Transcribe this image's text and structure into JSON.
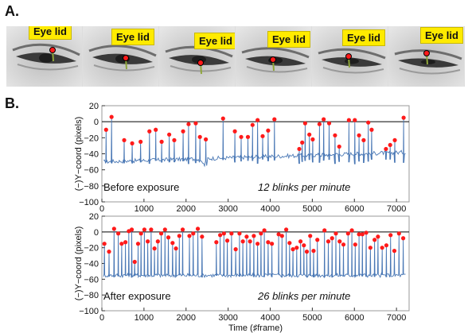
{
  "panel_a": {
    "letter": "A.",
    "frames": [
      {
        "label": "Eye lid"
      },
      {
        "label": "Eye lid"
      },
      {
        "label": "Eye lid"
      },
      {
        "label": "Eye lid"
      },
      {
        "label": "Eye lid"
      },
      {
        "label": "Eye lid"
      }
    ]
  },
  "panel_b": {
    "letter": "B."
  },
  "colors": {
    "trace": "#4a78b5",
    "peak": "#ff1a1a",
    "zero_line": "#000000",
    "label_bg": "#ffeb00"
  },
  "chart_data": [
    {
      "type": "line",
      "ylabel": "(−)Y−coord (pixels)",
      "xlabel": "",
      "xlim": [
        0,
        7300
      ],
      "ylim": [
        -100,
        20
      ],
      "xticks": [
        "0",
        "1000",
        "2000",
        "3000",
        "4000",
        "5000",
        "6000",
        "7000"
      ],
      "yticks": [
        "20",
        "0",
        "−20",
        "−40",
        "−60",
        "−80",
        "−100"
      ],
      "annotation_left": "Before exposure",
      "annotation_right": "12 blinks per minute",
      "baseline": -50,
      "peaks": [
        {
          "x": 100,
          "y": -10
        },
        {
          "x": 230,
          "y": 6
        },
        {
          "x": 530,
          "y": -23
        },
        {
          "x": 720,
          "y": -27
        },
        {
          "x": 920,
          "y": -25
        },
        {
          "x": 1130,
          "y": -12
        },
        {
          "x": 1280,
          "y": -10
        },
        {
          "x": 1420,
          "y": -25
        },
        {
          "x": 1600,
          "y": -16
        },
        {
          "x": 1720,
          "y": -23
        },
        {
          "x": 1930,
          "y": -12
        },
        {
          "x": 2060,
          "y": -3
        },
        {
          "x": 2230,
          "y": -2
        },
        {
          "x": 2330,
          "y": -19
        },
        {
          "x": 2470,
          "y": -22
        },
        {
          "x": 2880,
          "y": 4
        },
        {
          "x": 3160,
          "y": -12
        },
        {
          "x": 3310,
          "y": -19
        },
        {
          "x": 3470,
          "y": -19
        },
        {
          "x": 3580,
          "y": -4
        },
        {
          "x": 3700,
          "y": 2
        },
        {
          "x": 3820,
          "y": -18
        },
        {
          "x": 3950,
          "y": -11
        },
        {
          "x": 4100,
          "y": 3
        },
        {
          "x": 4690,
          "y": -34
        },
        {
          "x": 4760,
          "y": -26
        },
        {
          "x": 4830,
          "y": -2
        },
        {
          "x": 4930,
          "y": -16
        },
        {
          "x": 5010,
          "y": -22
        },
        {
          "x": 5170,
          "y": -3
        },
        {
          "x": 5270,
          "y": 3
        },
        {
          "x": 5400,
          "y": -2
        },
        {
          "x": 5540,
          "y": -17
        },
        {
          "x": 5640,
          "y": -31
        },
        {
          "x": 5870,
          "y": 2
        },
        {
          "x": 6010,
          "y": 2
        },
        {
          "x": 6110,
          "y": -17
        },
        {
          "x": 6220,
          "y": -23
        },
        {
          "x": 6330,
          "y": -1
        },
        {
          "x": 6410,
          "y": -10
        },
        {
          "x": 6750,
          "y": -34
        },
        {
          "x": 6850,
          "y": -29
        },
        {
          "x": 6960,
          "y": -23
        },
        {
          "x": 7170,
          "y": 5
        }
      ]
    },
    {
      "type": "line",
      "ylabel": "(−)Y−coord (pixels)",
      "xlabel": "Time (♯frame)",
      "xlim": [
        0,
        7300
      ],
      "ylim": [
        -100,
        20
      ],
      "xticks": [
        "0",
        "1000",
        "2000",
        "3000",
        "4000",
        "5000",
        "6000",
        "7000"
      ],
      "yticks": [
        "20",
        "0",
        "−20",
        "−40",
        "−60",
        "−80",
        "−100"
      ],
      "annotation_left": "After exposure",
      "annotation_right": "26 blinks per minute",
      "baseline": -55,
      "peaks": [
        {
          "x": 60,
          "y": -15
        },
        {
          "x": 170,
          "y": -25
        },
        {
          "x": 290,
          "y": 4
        },
        {
          "x": 390,
          "y": -2
        },
        {
          "x": 470,
          "y": -15
        },
        {
          "x": 560,
          "y": -13
        },
        {
          "x": 640,
          "y": 1
        },
        {
          "x": 710,
          "y": 3
        },
        {
          "x": 780,
          "y": -38
        },
        {
          "x": 860,
          "y": -15
        },
        {
          "x": 930,
          "y": -2
        },
        {
          "x": 1010,
          "y": 3
        },
        {
          "x": 1090,
          "y": -12
        },
        {
          "x": 1170,
          "y": 3
        },
        {
          "x": 1250,
          "y": -21
        },
        {
          "x": 1330,
          "y": -12
        },
        {
          "x": 1410,
          "y": -2
        },
        {
          "x": 1500,
          "y": 3
        },
        {
          "x": 1580,
          "y": -7
        },
        {
          "x": 1680,
          "y": -14
        },
        {
          "x": 1760,
          "y": -21
        },
        {
          "x": 1840,
          "y": -5
        },
        {
          "x": 1920,
          "y": 3
        },
        {
          "x": 2080,
          "y": -5
        },
        {
          "x": 2170,
          "y": -2
        },
        {
          "x": 2280,
          "y": 4
        },
        {
          "x": 2380,
          "y": -6
        },
        {
          "x": 2720,
          "y": -13
        },
        {
          "x": 2810,
          "y": -4
        },
        {
          "x": 2900,
          "y": -2
        },
        {
          "x": 2980,
          "y": -11
        },
        {
          "x": 3080,
          "y": -2
        },
        {
          "x": 3180,
          "y": -22
        },
        {
          "x": 3270,
          "y": -2
        },
        {
          "x": 3350,
          "y": -12
        },
        {
          "x": 3440,
          "y": -6
        },
        {
          "x": 3520,
          "y": -12
        },
        {
          "x": 3610,
          "y": -5
        },
        {
          "x": 3700,
          "y": -15
        },
        {
          "x": 3780,
          "y": -2
        },
        {
          "x": 3860,
          "y": 2
        },
        {
          "x": 3950,
          "y": -13
        },
        {
          "x": 4040,
          "y": -15
        },
        {
          "x": 4200,
          "y": -3
        },
        {
          "x": 4280,
          "y": -5
        },
        {
          "x": 4380,
          "y": 3
        },
        {
          "x": 4460,
          "y": -14
        },
        {
          "x": 4540,
          "y": -22
        },
        {
          "x": 4630,
          "y": -20
        },
        {
          "x": 4720,
          "y": -12
        },
        {
          "x": 4800,
          "y": -17
        },
        {
          "x": 4870,
          "y": -25
        },
        {
          "x": 4950,
          "y": -5
        },
        {
          "x": 5030,
          "y": -24
        },
        {
          "x": 5120,
          "y": -10
        },
        {
          "x": 5290,
          "y": 2
        },
        {
          "x": 5380,
          "y": -12
        },
        {
          "x": 5470,
          "y": -8
        },
        {
          "x": 5560,
          "y": -2
        },
        {
          "x": 5650,
          "y": -12
        },
        {
          "x": 5740,
          "y": -16
        },
        {
          "x": 5850,
          "y": -2
        },
        {
          "x": 5940,
          "y": 2
        },
        {
          "x": 6020,
          "y": -16
        },
        {
          "x": 6110,
          "y": -3
        },
        {
          "x": 6190,
          "y": -3
        },
        {
          "x": 6280,
          "y": -1
        },
        {
          "x": 6380,
          "y": -20
        },
        {
          "x": 6480,
          "y": -10
        },
        {
          "x": 6560,
          "y": -6
        },
        {
          "x": 6660,
          "y": -20
        },
        {
          "x": 6760,
          "y": -17
        },
        {
          "x": 6860,
          "y": -4
        },
        {
          "x": 6950,
          "y": -24
        },
        {
          "x": 7060,
          "y": -2
        },
        {
          "x": 7160,
          "y": -8
        }
      ]
    }
  ]
}
